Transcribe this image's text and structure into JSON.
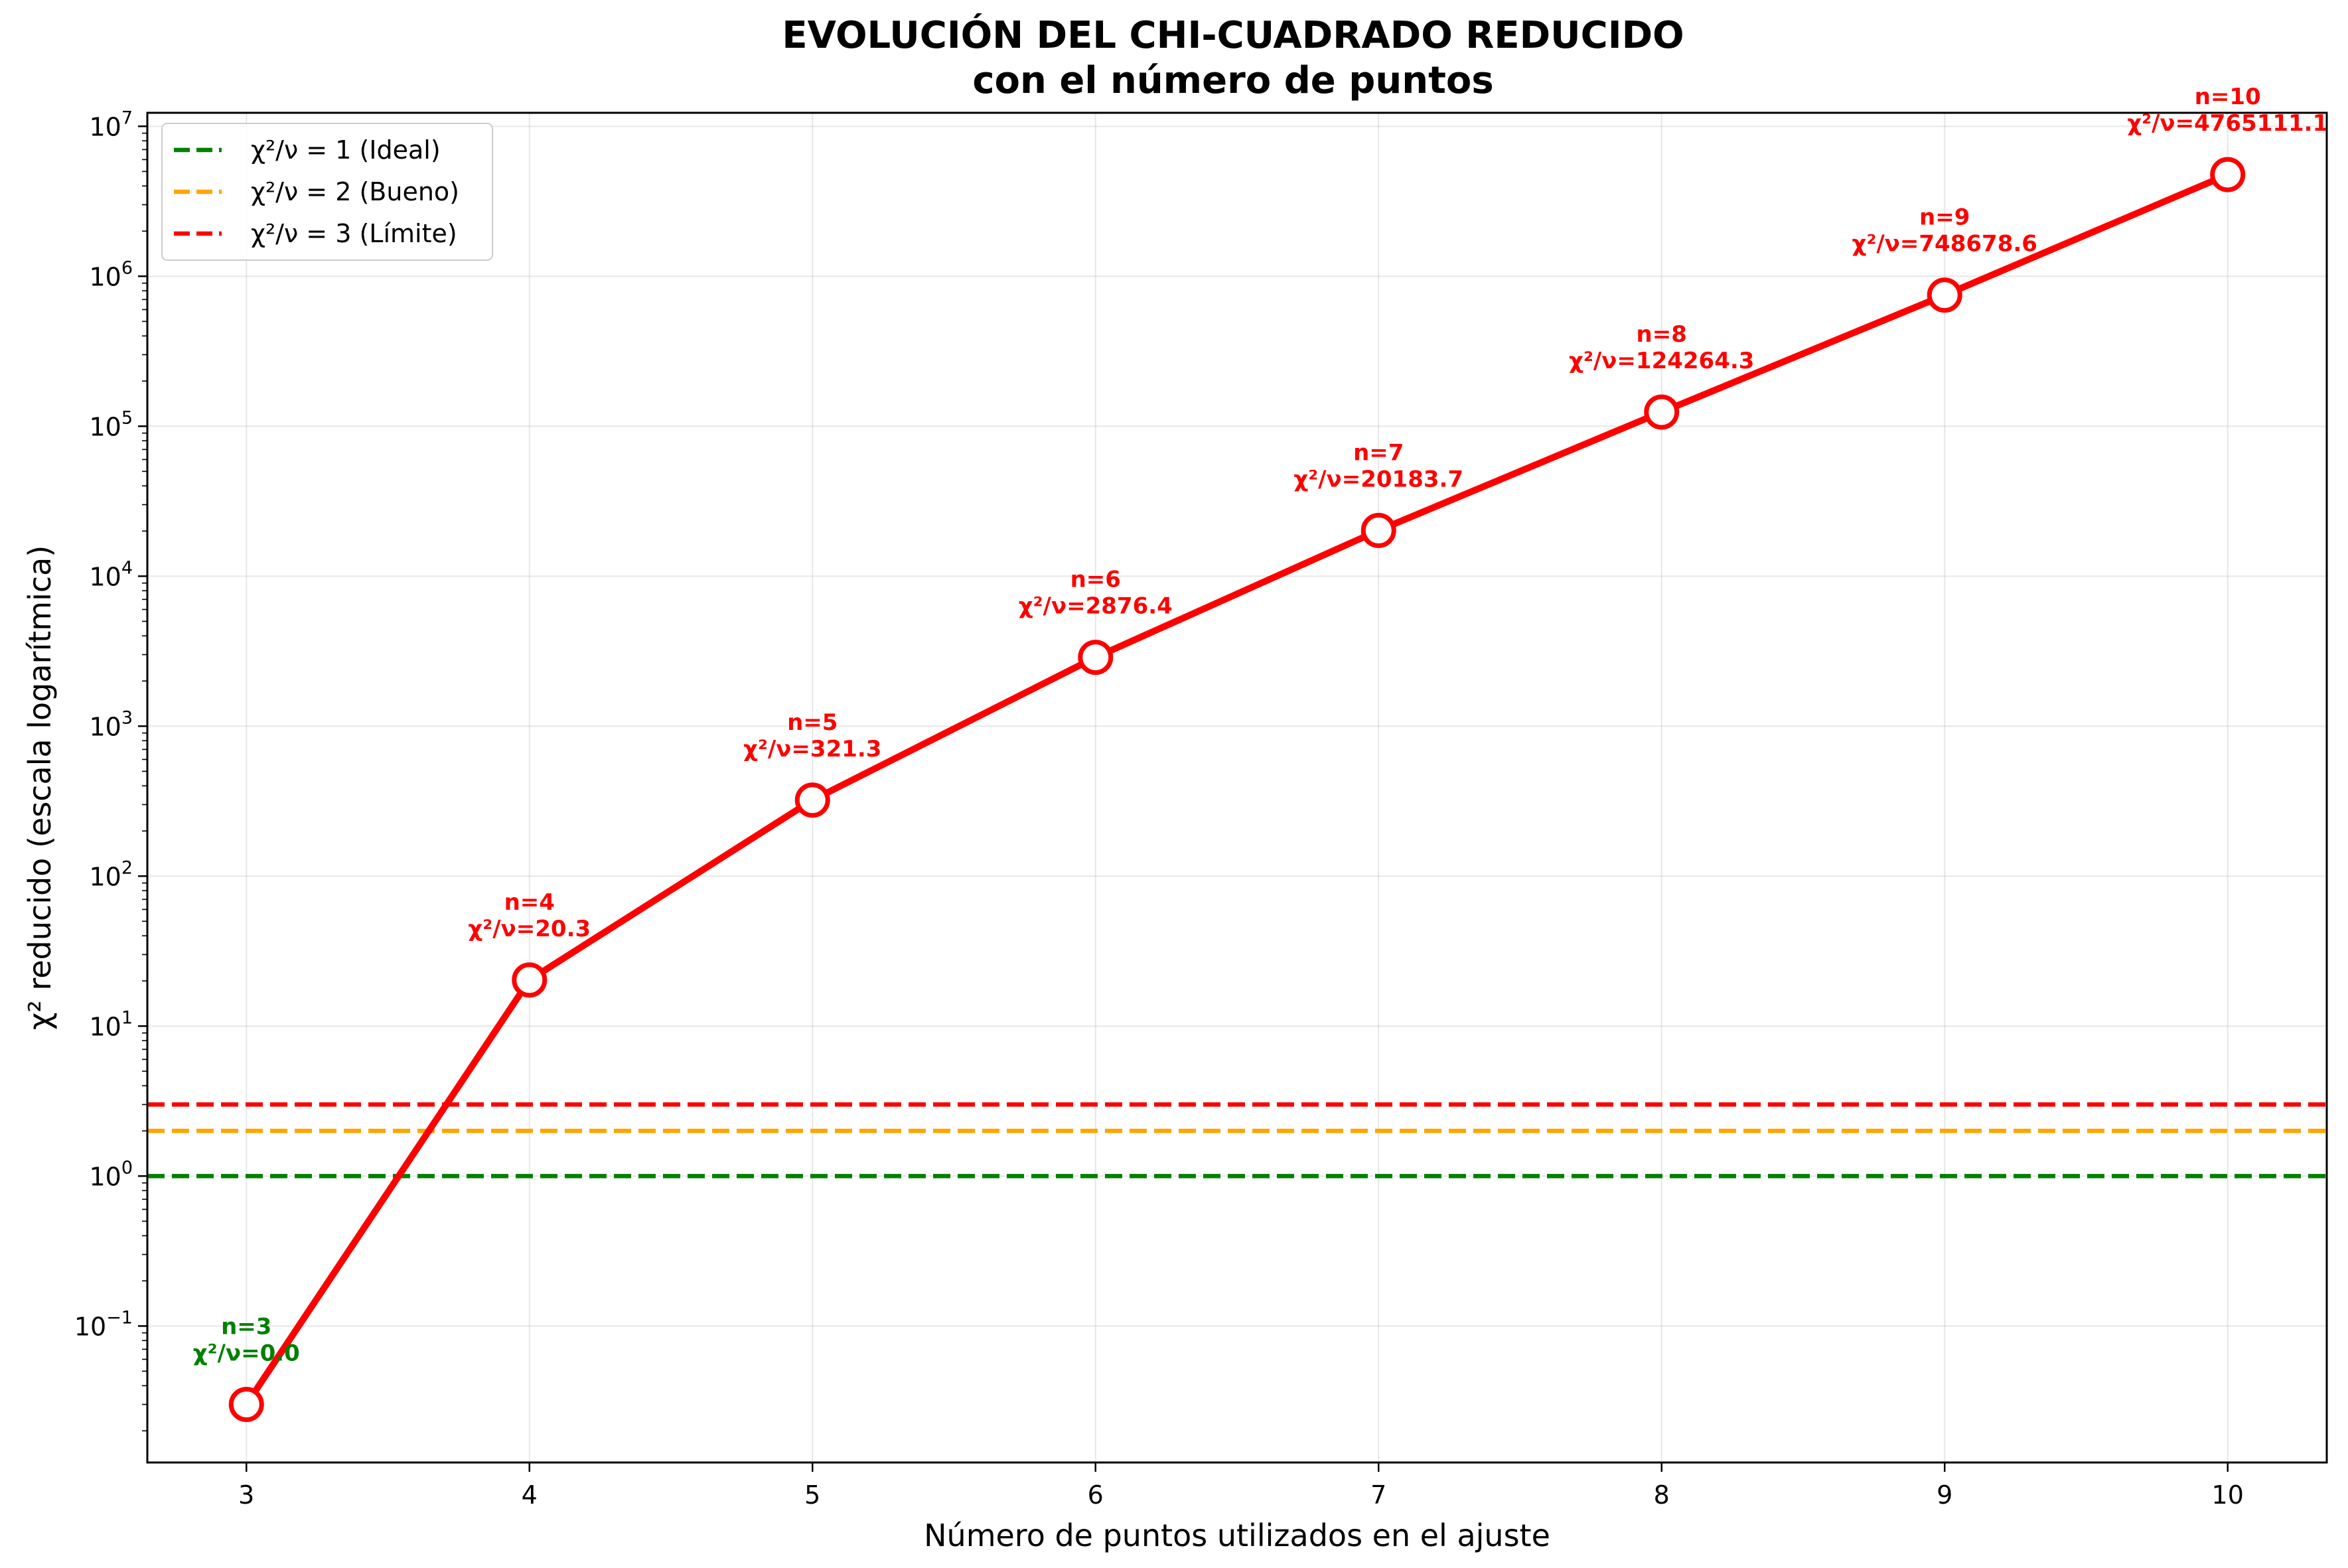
{
  "chart_data": {
    "type": "line",
    "title": [
      "EVOLUCIÓN DEL CHI-CUADRADO REDUCIDO",
      "con el número de puntos"
    ],
    "xlabel": "Número de puntos utilizados en el ajuste",
    "ylabel": "χ² reducido (escala logarítmica)",
    "yscale": "log",
    "xlim": [
      2.65,
      10.35
    ],
    "ylim_log10": [
      -1.91,
      7.09
    ],
    "grid": true,
    "legend_position": "top-left",
    "x_ticks": [
      3,
      4,
      5,
      6,
      7,
      8,
      9,
      10
    ],
    "y_ticks": [
      {
        "exp": -1,
        "base": "10",
        "sup": "−1"
      },
      {
        "exp": 0,
        "base": "10",
        "sup": "0"
      },
      {
        "exp": 1,
        "base": "10",
        "sup": "1"
      },
      {
        "exp": 2,
        "base": "10",
        "sup": "2"
      },
      {
        "exp": 3,
        "base": "10",
        "sup": "3"
      },
      {
        "exp": 4,
        "base": "10",
        "sup": "4"
      },
      {
        "exp": 5,
        "base": "10",
        "sup": "5"
      },
      {
        "exp": 6,
        "base": "10",
        "sup": "6"
      },
      {
        "exp": 7,
        "base": "10",
        "sup": "7"
      }
    ],
    "series": [
      {
        "x": [
          3,
          4,
          5,
          6,
          7,
          8,
          9,
          10
        ],
        "y": [
          0.03,
          20.3,
          321.3,
          2876.4,
          20183.7,
          124264.3,
          748678.6,
          4765111.1
        ],
        "color": "#ff0000",
        "annotations": [
          {
            "n": "n=3",
            "chi": "χ²/ν=0.0",
            "color": "#008000"
          },
          {
            "n": "n=4",
            "chi": "χ²/ν=20.3",
            "color": "#ff0000"
          },
          {
            "n": "n=5",
            "chi": "χ²/ν=321.3",
            "color": "#ff0000"
          },
          {
            "n": "n=6",
            "chi": "χ²/ν=2876.4",
            "color": "#ff0000"
          },
          {
            "n": "n=7",
            "chi": "χ²/ν=20183.7",
            "color": "#ff0000"
          },
          {
            "n": "n=8",
            "chi": "χ²/ν=124264.3",
            "color": "#ff0000"
          },
          {
            "n": "n=9",
            "chi": "χ²/ν=748678.6",
            "color": "#ff0000"
          },
          {
            "n": "n=10",
            "chi": "χ²/ν=4765111.1",
            "color": "#ff0000"
          }
        ]
      }
    ],
    "reference_lines": [
      {
        "y": 1,
        "label": "χ²/ν = 1 (Ideal)",
        "color": "#008000"
      },
      {
        "y": 2,
        "label": "χ²/ν = 2 (Bueno)",
        "color": "#ffa500"
      },
      {
        "y": 3,
        "label": "χ²/ν = 3 (Límite)",
        "color": "#ff0000"
      }
    ]
  }
}
